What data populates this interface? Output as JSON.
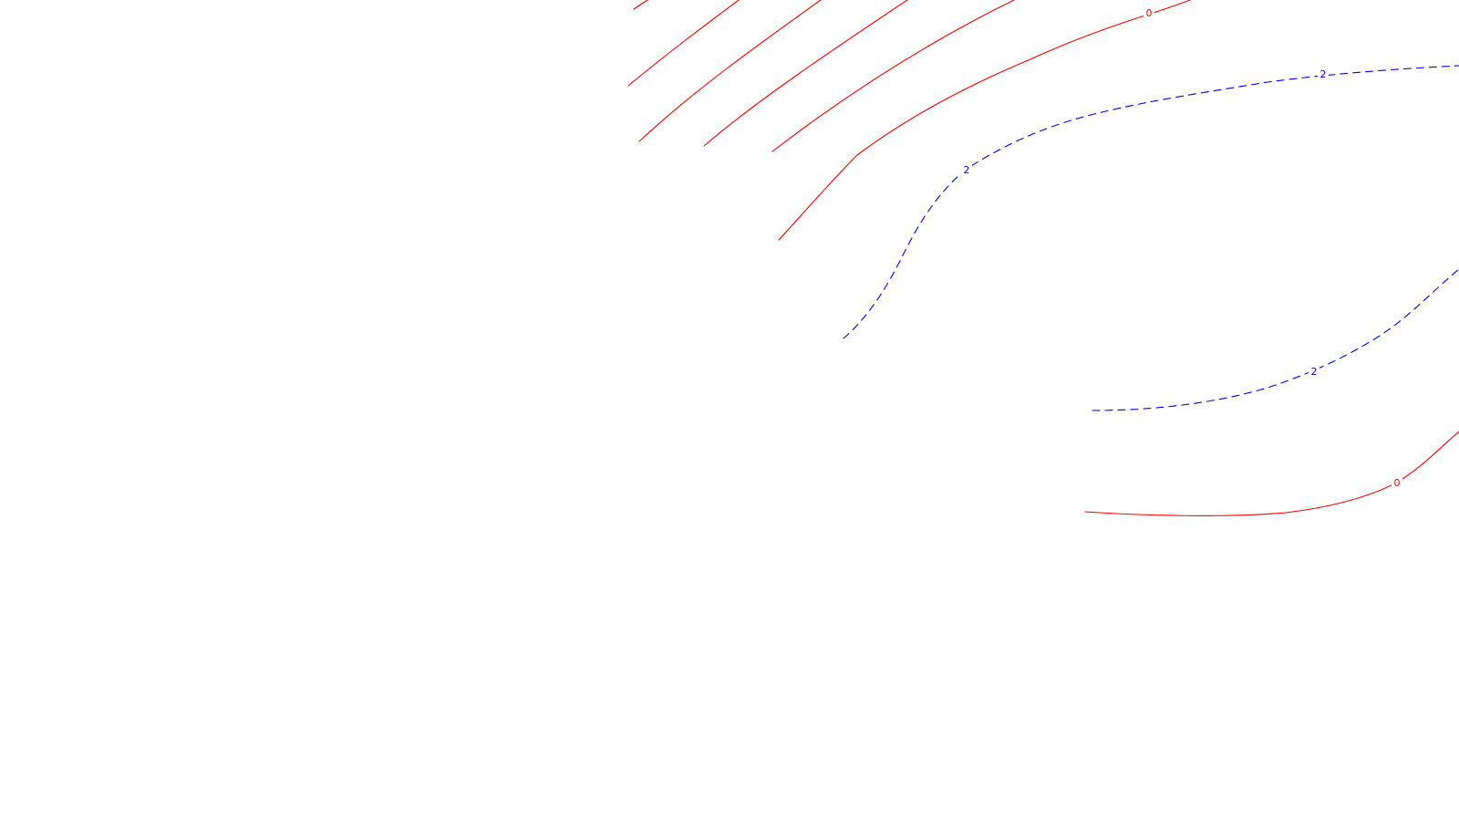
{
  "map": {
    "background": "#ffffff",
    "style": {
      "positive_color": "#ff0000",
      "negative_color": "#0000ff",
      "negative_line_style": "dashed",
      "positive_line_style": "solid"
    },
    "contours": [
      {
        "id": "red-a",
        "value": "0",
        "kind": "positive"
      },
      {
        "id": "red-b",
        "value": "0",
        "kind": "positive"
      },
      {
        "id": "red-c",
        "value": "0",
        "kind": "positive"
      },
      {
        "id": "red-d",
        "value": "0",
        "kind": "positive"
      },
      {
        "id": "red-e",
        "value": "0",
        "kind": "positive"
      },
      {
        "id": "red-f",
        "value": "0",
        "kind": "positive"
      },
      {
        "id": "blue-a",
        "value": "-2",
        "kind": "negative"
      },
      {
        "id": "blue-b",
        "value": "-2",
        "kind": "negative"
      },
      {
        "id": "blue-c",
        "value": "-2",
        "kind": "negative"
      }
    ],
    "labels": [
      {
        "id": "lbl-red-top",
        "text": "0",
        "kind": "positive"
      },
      {
        "id": "lbl-red-bottom",
        "text": "0",
        "kind": "positive"
      },
      {
        "id": "lbl-blue-top",
        "text": "2",
        "kind": "negative"
      },
      {
        "id": "lbl-blue-left",
        "text": "2",
        "kind": "negative"
      },
      {
        "id": "lbl-blue-bottom",
        "text": "2",
        "kind": "negative"
      }
    ]
  }
}
